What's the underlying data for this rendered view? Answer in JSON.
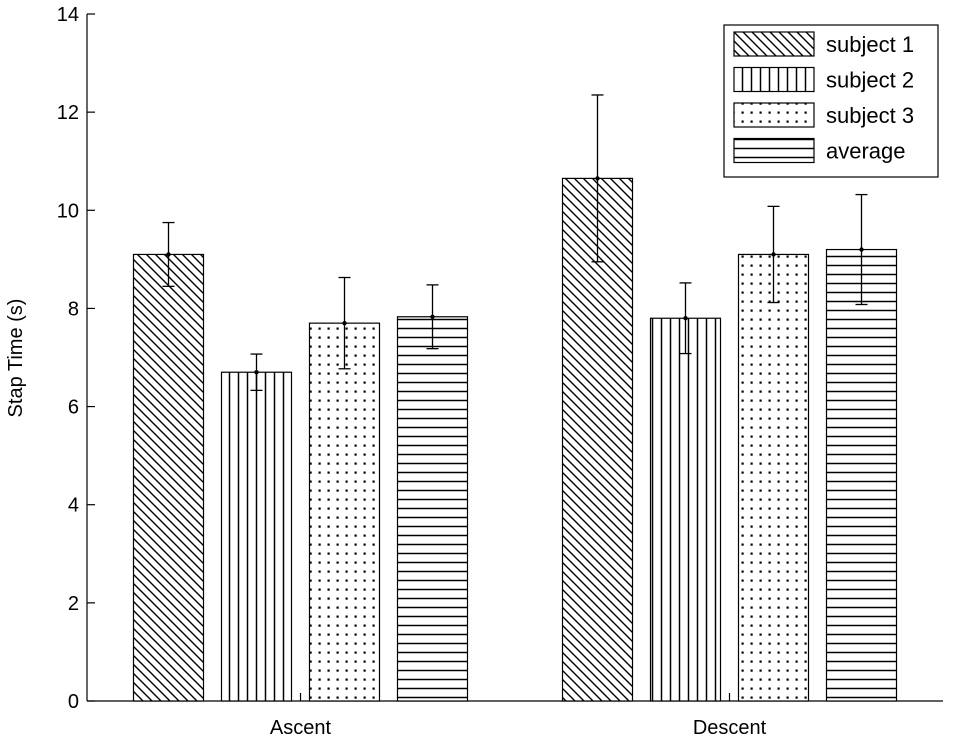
{
  "chart_data": {
    "type": "bar",
    "ylabel": "Stap Time (s)",
    "ylim": [
      0,
      14
    ],
    "yticks": [
      0,
      2,
      4,
      6,
      8,
      10,
      12,
      14
    ],
    "categories": [
      "Ascent",
      "Descent"
    ],
    "legend_position": "top-right",
    "series": [
      {
        "name": "subject 1",
        "pattern": "diagonal-hatch",
        "values": [
          9.1,
          10.65
        ],
        "errors": [
          0.65,
          1.7
        ]
      },
      {
        "name": "subject 2",
        "pattern": "vertical-lines",
        "values": [
          6.7,
          7.8
        ],
        "errors": [
          0.37,
          0.72
        ]
      },
      {
        "name": "subject 3",
        "pattern": "dots",
        "values": [
          7.7,
          9.1
        ],
        "errors": [
          0.93,
          0.98
        ]
      },
      {
        "name": "average",
        "pattern": "horizontal-lines",
        "values": [
          7.83,
          9.2
        ],
        "errors": [
          0.65,
          1.12
        ]
      }
    ]
  }
}
